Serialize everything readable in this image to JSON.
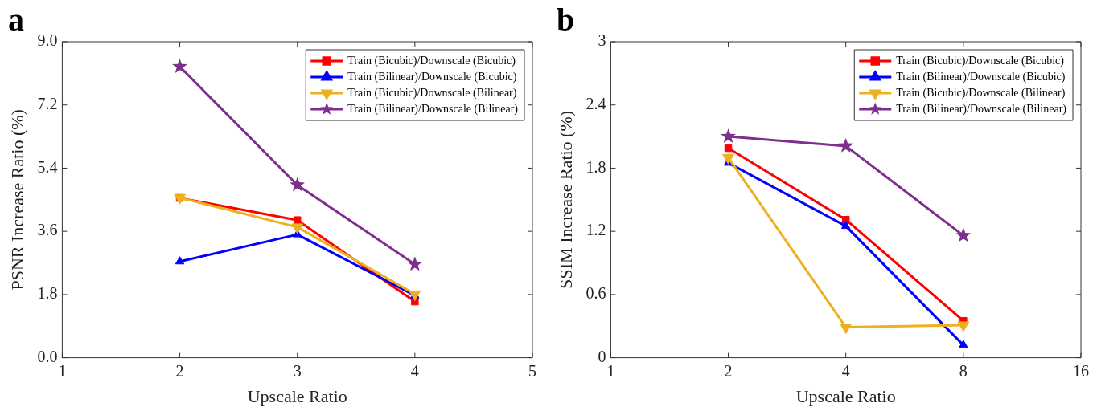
{
  "chart_data": [
    {
      "type": "line",
      "title": "a",
      "xlabel": "Upscale Ratio",
      "ylabel": "PSNR Increase Ratio (%)",
      "x": [
        2,
        3,
        4
      ],
      "xlim": [
        1,
        5
      ],
      "xticks": [
        1,
        2,
        3,
        4,
        5
      ],
      "ylim": [
        0,
        9
      ],
      "yticks": [
        {
          "value": 0,
          "label": "0.0"
        },
        1.8,
        3.6,
        5.4,
        7.2,
        {
          "value": 9,
          "label": "9.0"
        }
      ],
      "grid": false,
      "legend": "top right",
      "series": [
        {
          "name": "Train (Bicubic)/Downscale (Bicubic)",
          "color": "#ff0000",
          "marker": "square",
          "values": [
            4.55,
            3.92,
            1.6
          ]
        },
        {
          "name": "Train (Bilinear)/Downscale (Bicubic)",
          "color": "#0000ff",
          "marker": "triangle",
          "values": [
            2.74,
            3.51,
            1.77
          ]
        },
        {
          "name": "Train (Bicubic)/Downscale (Bilinear)",
          "color": "#edb120",
          "marker": "triangle-down",
          "values": [
            4.56,
            3.72,
            1.81
          ]
        },
        {
          "name": "Train (Bilinear)/Downscale (Bilinear)",
          "color": "#7e2f8e",
          "marker": "star",
          "values": [
            8.29,
            4.92,
            2.66
          ]
        }
      ]
    },
    {
      "type": "line",
      "title": "b",
      "xlabel": "Upscale Ratio",
      "ylabel": "SSIM Increase Ratio (%)",
      "x": [
        2,
        4,
        8
      ],
      "log": "x",
      "xlim": [
        1,
        16
      ],
      "xticks": [
        1,
        2,
        4,
        8,
        16
      ],
      "ylim": [
        0,
        3
      ],
      "yticks": [
        0,
        0.6,
        1.2,
        1.8,
        2.4,
        3
      ],
      "grid": false,
      "legend": "top right",
      "series": [
        {
          "name": "Train (Bicubic)/Downscale (Bicubic)",
          "color": "#ff0000",
          "marker": "square",
          "values": [
            1.99,
            1.31,
            0.35
          ]
        },
        {
          "name": "Train (Bilinear)/Downscale (Bicubic)",
          "color": "#0000ff",
          "marker": "triangle",
          "values": [
            1.85,
            1.25,
            0.12
          ]
        },
        {
          "name": "Train (Bicubic)/Downscale (Bilinear)",
          "color": "#edb120",
          "marker": "triangle-down",
          "values": [
            1.9,
            0.29,
            0.31
          ]
        },
        {
          "name": "Train (Bilinear)/Downscale (Bilinear)",
          "color": "#7e2f8e",
          "marker": "star",
          "values": [
            2.1,
            2.01,
            1.16
          ]
        }
      ]
    }
  ]
}
